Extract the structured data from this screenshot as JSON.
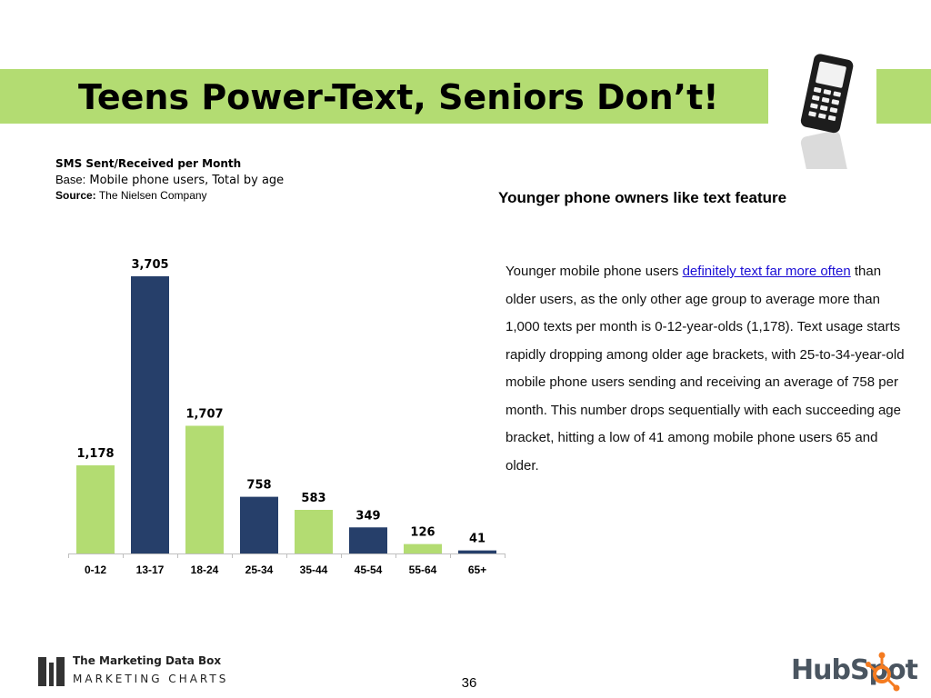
{
  "slide": {
    "title": "Teens Power-Text, Seniors Don’t!",
    "page_number": "36"
  },
  "chart_meta": {
    "title": "SMS Sent/Received per Month",
    "base_label": "Base:",
    "base_text": "Mobile phone users, Total by age",
    "source_label": "Source:",
    "source_text": "The Nielsen Company"
  },
  "chart_data": {
    "type": "bar",
    "title": "SMS Sent/Received per Month",
    "xlabel": "",
    "ylabel": "",
    "categories": [
      "0-12",
      "13-17",
      "18-24",
      "25-34",
      "35-44",
      "45-54",
      "55-64",
      "65+"
    ],
    "values": [
      1178,
      3705,
      1707,
      758,
      583,
      349,
      126,
      41
    ],
    "value_labels": [
      "1,178",
      "3,705",
      "1,707",
      "758",
      "583",
      "349",
      "126",
      "41"
    ],
    "bar_colors": [
      "#b3dc72",
      "#263f6a",
      "#b3dc72",
      "#263f6a",
      "#b3dc72",
      "#263f6a",
      "#b3dc72",
      "#263f6a"
    ],
    "ylim": [
      0,
      3705
    ],
    "grid": false,
    "legend": "none"
  },
  "commentary": {
    "heading": "Younger phone owners like text feature",
    "intro": "Younger mobile phone users ",
    "link_text": "definitely text far more often",
    "body": " than older users, as the only other age group to average more than 1,000 texts per month is 0-12-year-olds (1,178). Text usage starts rapidly dropping among older age brackets, with 25-to-34-year-old mobile phone users sending and receiving an average of 758 per month. This number drops sequentially with each succeeding age bracket, hitting a low of 41 among mobile phone users 65 and older."
  },
  "footer": {
    "brand_line1": "The Marketing Data Box",
    "brand_line2": "MARKETING CHARTS",
    "partner_logo_text": "HubSpot"
  },
  "colors": {
    "accent_green": "#b3dc72",
    "navy": "#263f6a",
    "link": "#1a0dd5",
    "hubspot_orange": "#f47b20"
  },
  "icons": [
    "mobile-phone-icon",
    "marketing-data-box-logo",
    "hubspot-logo"
  ]
}
